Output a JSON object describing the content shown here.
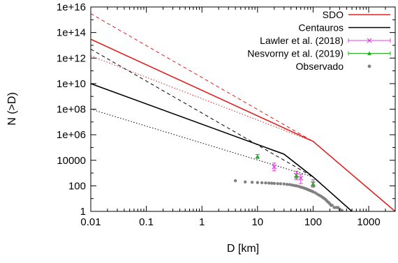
{
  "chart_data": {
    "type": "line",
    "xlabel": "D [km]",
    "ylabel": "N (>D)",
    "xscale": "log",
    "yscale": "log",
    "xlim": [
      0.01,
      3000
    ],
    "ylim": [
      1,
      1e+16
    ],
    "x_ticks": [
      {
        "value": 0.01,
        "label": "0.01"
      },
      {
        "value": 0.1,
        "label": "0.1"
      },
      {
        "value": 1,
        "label": "1"
      },
      {
        "value": 10,
        "label": "10"
      },
      {
        "value": 100,
        "label": "100"
      },
      {
        "value": 1000,
        "label": "1000"
      }
    ],
    "y_ticks": [
      {
        "value": 1,
        "label": "1"
      },
      {
        "value": 100,
        "label": "100"
      },
      {
        "value": 10000,
        "label": "10000"
      },
      {
        "value": 1000000.0,
        "label": "1e+06"
      },
      {
        "value": 100000000.0,
        "label": "1e+08"
      },
      {
        "value": 10000000000.0,
        "label": "1e+10"
      },
      {
        "value": 1000000000000.0,
        "label": "1e+12"
      },
      {
        "value": 100000000000000.0,
        "label": "1e+14"
      },
      {
        "value": 1e+16,
        "label": "1e+16"
      }
    ],
    "legend_position": "top-right",
    "legend": [
      {
        "label": "SDO",
        "style": "line",
        "color": "#e02020"
      },
      {
        "label": "Centauros",
        "style": "line",
        "color": "#000000"
      },
      {
        "label": "Lawler et al. (2018)",
        "style": "errorbar",
        "marker": "x",
        "color": "#e040e0"
      },
      {
        "label": "Nesvorny et al. (2019)",
        "style": "errorbar",
        "marker": "triangle",
        "color": "#20b020"
      },
      {
        "label": "Observado",
        "style": "points",
        "marker": "dot",
        "color": "#808080"
      }
    ],
    "series": [
      {
        "name": "SDO",
        "style": "solid",
        "color": "#e02020",
        "width": 1.6,
        "x": [
          0.01,
          100,
          3000
        ],
        "y": [
          30000000000000.0,
          300000.0,
          1
        ]
      },
      {
        "name": "Centauros",
        "style": "solid",
        "color": "#000000",
        "width": 1.6,
        "x": [
          0.01,
          30,
          100,
          500
        ],
        "y": [
          10000000000.0,
          30000.0,
          500,
          1
        ]
      },
      {
        "style": "dashed",
        "color": "#e02020",
        "width": 1,
        "x": [
          0.01,
          100
        ],
        "y": [
          3000000000000000.0,
          300000.0
        ]
      },
      {
        "style": "dotted",
        "color": "#e02020",
        "width": 1,
        "x": [
          0.01,
          100
        ],
        "y": [
          1500000000000.0,
          300000.0
        ]
      },
      {
        "style": "dashed",
        "color": "#000000",
        "width": 1,
        "x": [
          0.01,
          100
        ],
        "y": [
          5000000000000.0,
          500
        ]
      },
      {
        "style": "dotted",
        "color": "#000000",
        "width": 1,
        "x": [
          0.01,
          100
        ],
        "y": [
          100000000.0,
          500
        ]
      }
    ],
    "lawler_points": [
      {
        "x": 20,
        "y": 3000,
        "ylow": 1500,
        "yhigh": 6000
      },
      {
        "x": 50,
        "y": 700,
        "ylow": 300,
        "yhigh": 1400
      },
      {
        "x": 60,
        "y": 400,
        "ylow": 150,
        "yhigh": 800
      },
      {
        "x": 100,
        "y": 150,
        "ylow": 80,
        "yhigh": 300
      }
    ],
    "nesvorny_points": [
      {
        "x": 10,
        "y": 20000,
        "ylow": 14000,
        "yhigh": 28000
      },
      {
        "x": 50,
        "y": 600,
        "ylow": 400,
        "yhigh": 850
      },
      {
        "x": 100,
        "y": 130,
        "ylow": 90,
        "yhigh": 200
      }
    ],
    "observado_points": [
      {
        "x": 4,
        "y": 250
      },
      {
        "x": 6,
        "y": 200
      },
      {
        "x": 8,
        "y": 190
      },
      {
        "x": 10,
        "y": 180
      },
      {
        "x": 12,
        "y": 175
      },
      {
        "x": 14,
        "y": 170
      },
      {
        "x": 16,
        "y": 165
      },
      {
        "x": 18,
        "y": 160
      },
      {
        "x": 20,
        "y": 155
      },
      {
        "x": 23,
        "y": 150
      },
      {
        "x": 26,
        "y": 145
      },
      {
        "x": 30,
        "y": 140
      },
      {
        "x": 34,
        "y": 130
      },
      {
        "x": 38,
        "y": 125
      },
      {
        "x": 42,
        "y": 115
      },
      {
        "x": 46,
        "y": 105
      },
      {
        "x": 50,
        "y": 100
      },
      {
        "x": 55,
        "y": 90
      },
      {
        "x": 60,
        "y": 80
      },
      {
        "x": 65,
        "y": 72
      },
      {
        "x": 70,
        "y": 65
      },
      {
        "x": 75,
        "y": 58
      },
      {
        "x": 80,
        "y": 52
      },
      {
        "x": 85,
        "y": 46
      },
      {
        "x": 90,
        "y": 42
      },
      {
        "x": 95,
        "y": 38
      },
      {
        "x": 100,
        "y": 34
      },
      {
        "x": 110,
        "y": 28
      },
      {
        "x": 120,
        "y": 22
      },
      {
        "x": 130,
        "y": 18
      },
      {
        "x": 140,
        "y": 15
      },
      {
        "x": 150,
        "y": 12
      },
      {
        "x": 160,
        "y": 10
      },
      {
        "x": 170,
        "y": 8
      },
      {
        "x": 180,
        "y": 6
      },
      {
        "x": 190,
        "y": 5
      },
      {
        "x": 200,
        "y": 4
      },
      {
        "x": 210,
        "y": 3
      },
      {
        "x": 220,
        "y": 3
      },
      {
        "x": 240,
        "y": 2
      },
      {
        "x": 260,
        "y": 2
      },
      {
        "x": 280,
        "y": 2
      },
      {
        "x": 300,
        "y": 1.5
      },
      {
        "x": 330,
        "y": 1.2
      }
    ]
  }
}
